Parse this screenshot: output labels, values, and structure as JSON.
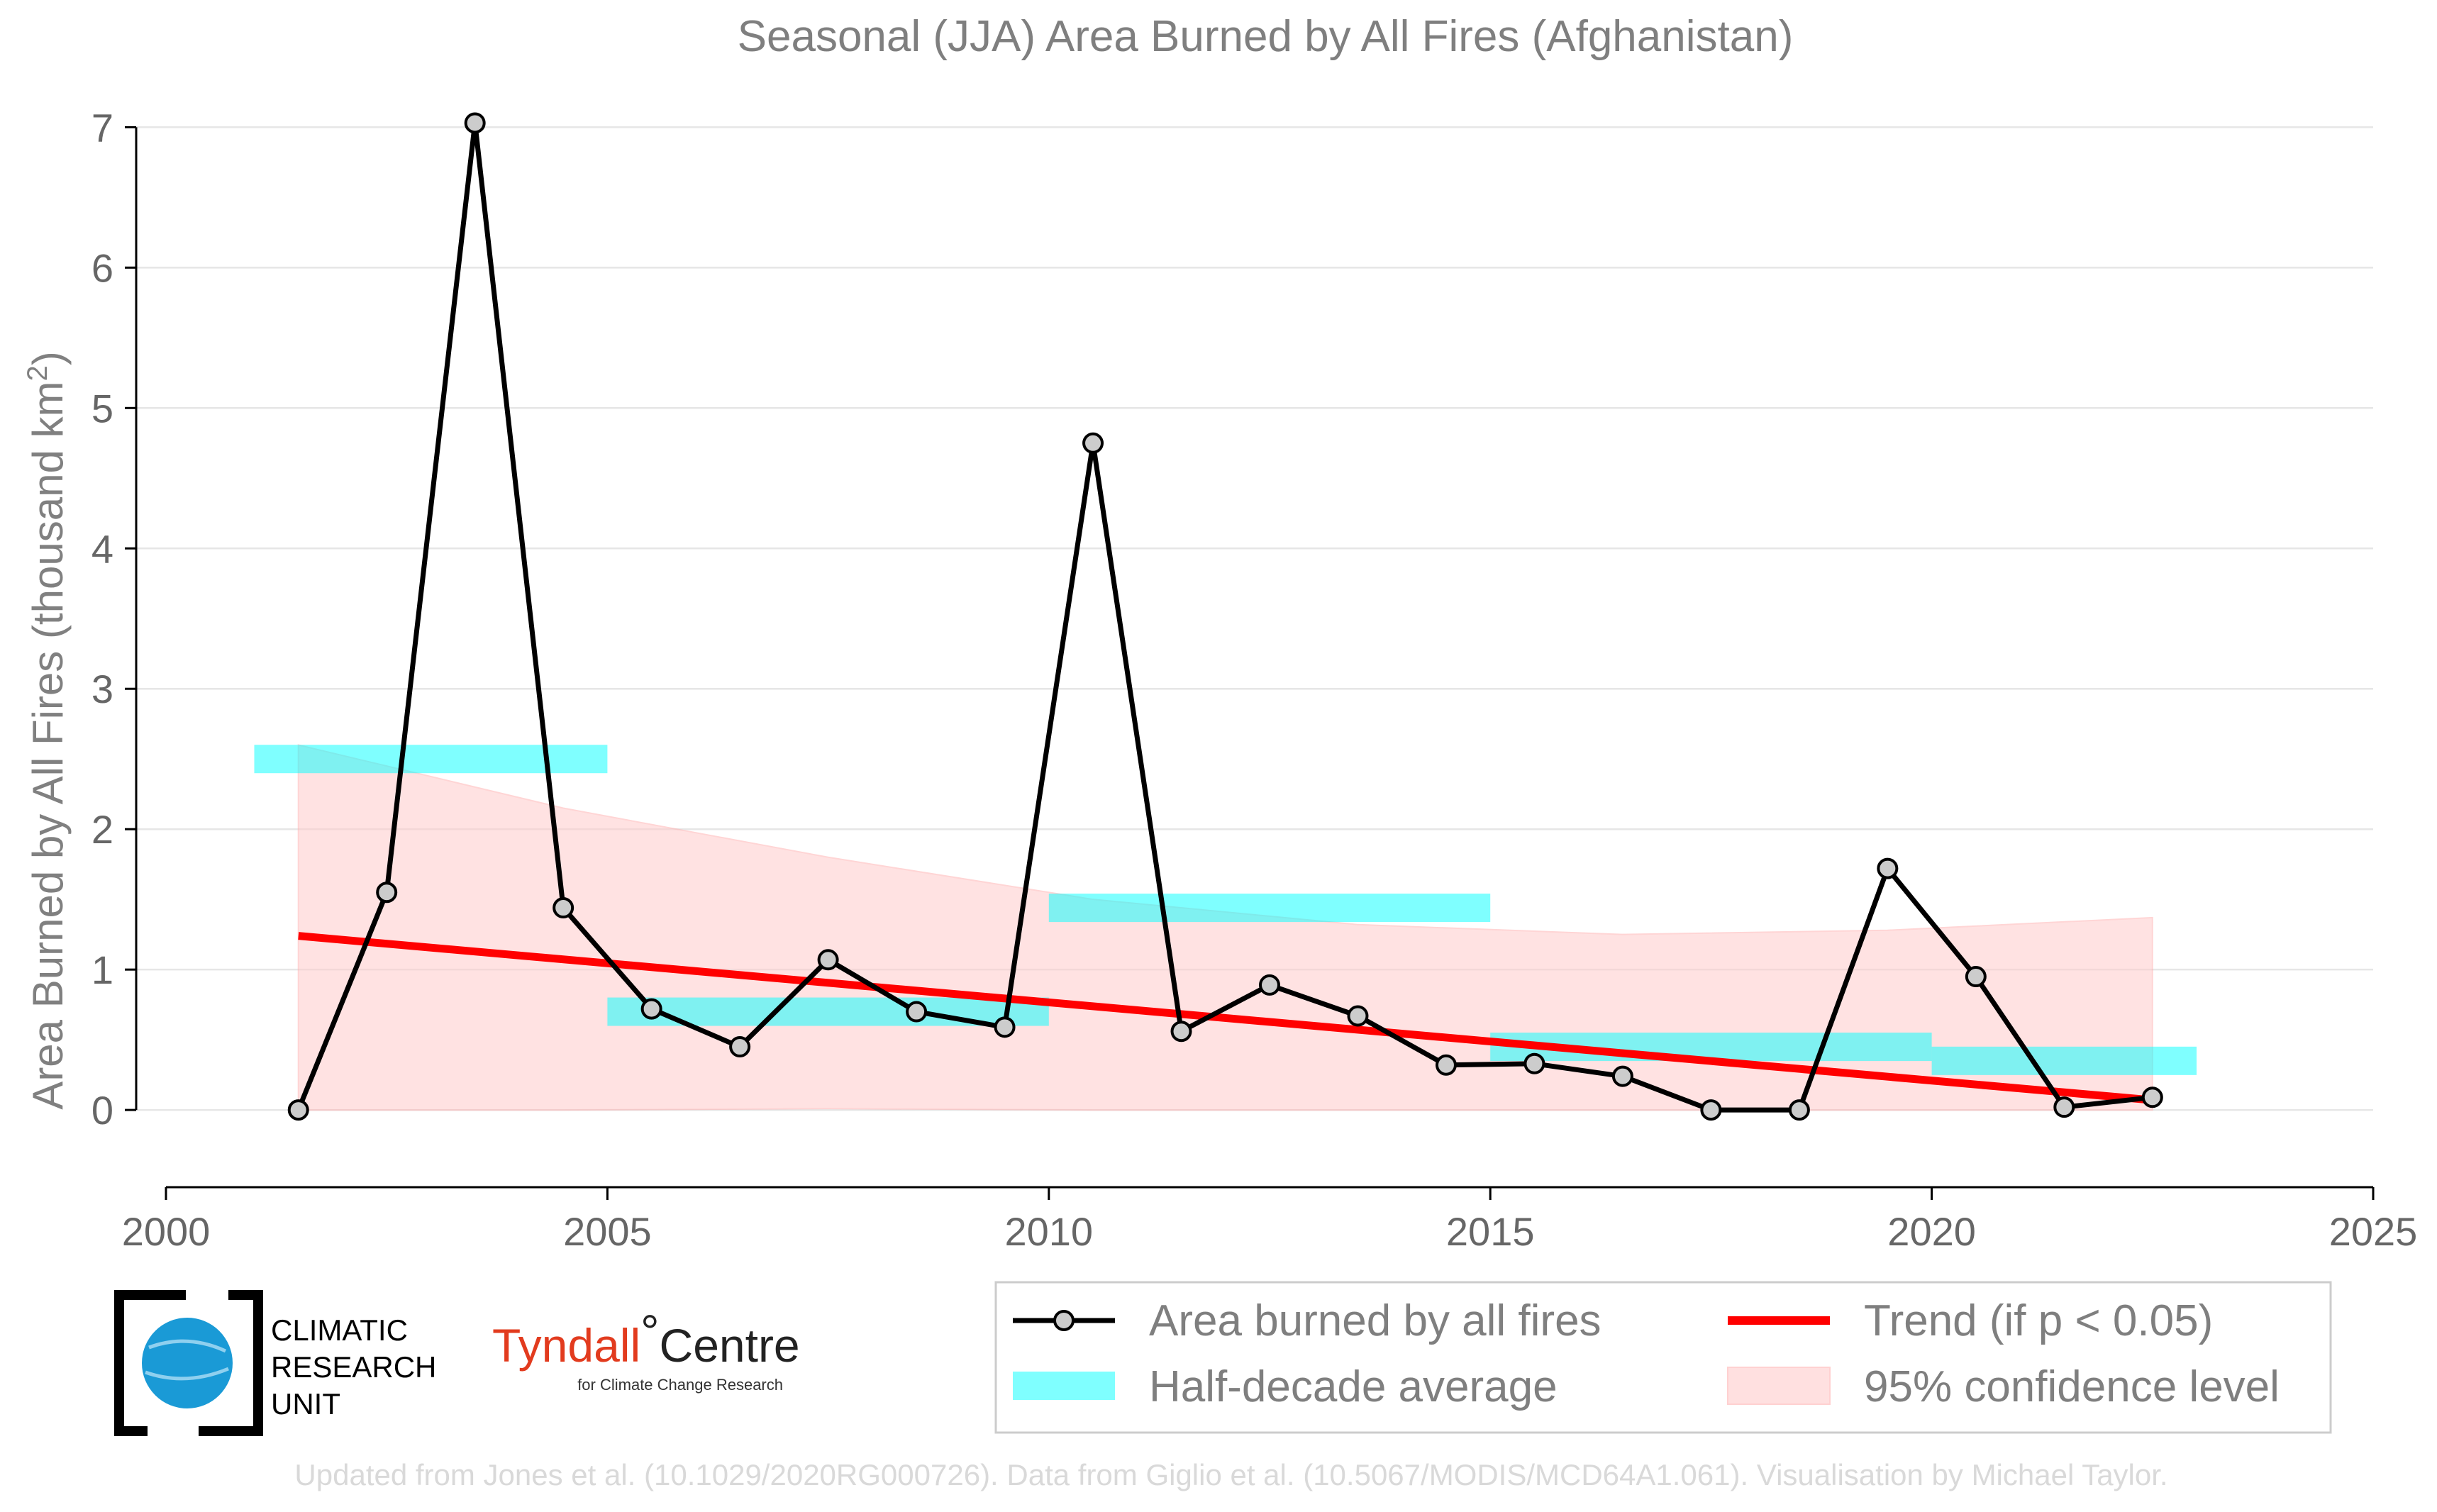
{
  "chart_data": {
    "type": "line",
    "title": "Seasonal (JJA) Area Burned by All Fires (Afghanistan)",
    "xlabel": "",
    "ylabel": "Area Burned by All Fires (thousand km²)",
    "ylabel_parts": [
      "Area Burned by All Fires (thousand km",
      "2",
      ")"
    ],
    "xlim": [
      2000,
      2025
    ],
    "ylim": [
      -0.55,
      7.3
    ],
    "xticks": [
      2000,
      2005,
      2010,
      2015,
      2020,
      2025
    ],
    "yticks": [
      0,
      1,
      2,
      3,
      4,
      5,
      6,
      7
    ],
    "grid": "horizontal",
    "legend_placement": "bottom-right",
    "series": [
      {
        "name": "Area burned by all fires",
        "color": "#000000",
        "marker_color": "#cccccc",
        "x": [
          2001.5,
          2002.5,
          2003.5,
          2004.5,
          2005.5,
          2006.5,
          2007.5,
          2008.5,
          2009.5,
          2010.5,
          2011.5,
          2012.5,
          2013.5,
          2014.5,
          2015.5,
          2016.5,
          2017.5,
          2018.5,
          2019.5,
          2020.5,
          2021.5,
          2022.5
        ],
        "values": [
          0.0,
          1.55,
          7.03,
          1.44,
          0.72,
          0.45,
          1.07,
          0.7,
          0.59,
          4.75,
          0.56,
          0.89,
          0.67,
          0.32,
          0.33,
          0.24,
          0.0,
          0.0,
          1.72,
          0.95,
          0.02,
          0.09
        ]
      },
      {
        "name": "Half-decade average",
        "color": "#00ffff",
        "segments": [
          {
            "x_start": 2001,
            "x_end": 2005,
            "value": 2.5
          },
          {
            "x_start": 2005,
            "x_end": 2010,
            "value": 0.7
          },
          {
            "x_start": 2010,
            "x_end": 2015,
            "value": 1.44
          },
          {
            "x_start": 2015,
            "x_end": 2020,
            "value": 0.45
          },
          {
            "x_start": 2020,
            "x_end": 2023,
            "value": 0.35
          }
        ]
      },
      {
        "name": "Trend (if p < 0.05)",
        "color": "#ff0000",
        "x": [
          2001.5,
          2022.5
        ],
        "values": [
          1.24,
          0.07
        ]
      },
      {
        "name": "95% confidence level",
        "color": "#ffcccc",
        "x": [
          2001.5,
          2004.5,
          2007.5,
          2010.5,
          2013.5,
          2016.5,
          2019.5,
          2022.5
        ],
        "upper": [
          2.6,
          2.15,
          1.8,
          1.5,
          1.32,
          1.25,
          1.28,
          1.37
        ],
        "lower": [
          0.0,
          0.0,
          0.01,
          0.0,
          0.0,
          0.0,
          0.0,
          0.0
        ]
      }
    ]
  },
  "legend": {
    "items": [
      {
        "label": "Area burned by all fires",
        "kind": "line-marker"
      },
      {
        "label": "Half-decade average",
        "kind": "band"
      },
      {
        "label": "Trend (if p < 0.05)",
        "kind": "line"
      },
      {
        "label": "95% confidence level",
        "kind": "fill"
      }
    ]
  },
  "logos": {
    "cru_line1": "CLIMATIC",
    "cru_line2": "RESEARCH",
    "cru_line3": "UNIT",
    "tyndall_main": "Tyndall",
    "tyndall_degree": "°",
    "tyndall_centre": "Centre",
    "tyndall_sub": "for Climate Change Research"
  },
  "footer": "Updated from Jones et al. (10.1029/2020RG000726). Data from Giglio et al. (10.5067/MODIS/MCD64A1.061). Visualisation by Michael Taylor."
}
